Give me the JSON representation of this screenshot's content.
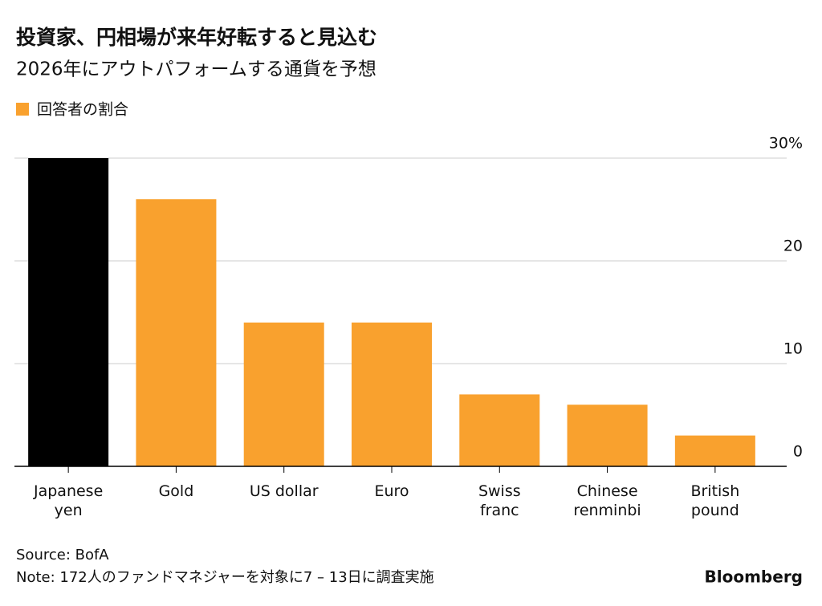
{
  "chart_data": {
    "type": "bar",
    "title": "投資家、円相場が来年好転すると見込む",
    "subtitle": "2026年にアウトパフォームする通貨を予想",
    "legend": "回答者の割合",
    "categories": [
      "Japanese\nyen",
      "Gold",
      "US dollar",
      "Euro",
      "Swiss\nfranc",
      "Chinese\nrenminbi",
      "British\npound"
    ],
    "values": [
      30,
      26,
      14,
      14,
      7,
      6,
      3
    ],
    "color": "#f9a12e",
    "colors": [
      "#000000",
      "#f9a12e",
      "#f9a12e",
      "#f9a12e",
      "#f9a12e",
      "#f9a12e",
      "#f9a12e"
    ],
    "ylim": [
      0,
      30
    ],
    "yticks": [
      0,
      10,
      20,
      {
        "value": 30,
        "label": "30%"
      }
    ],
    "grid": true,
    "source": "Source: BofA",
    "note": "Note: 172人のファンドマネジャーを対象に7 – 13日に調査実施",
    "brand": "Bloomberg"
  }
}
